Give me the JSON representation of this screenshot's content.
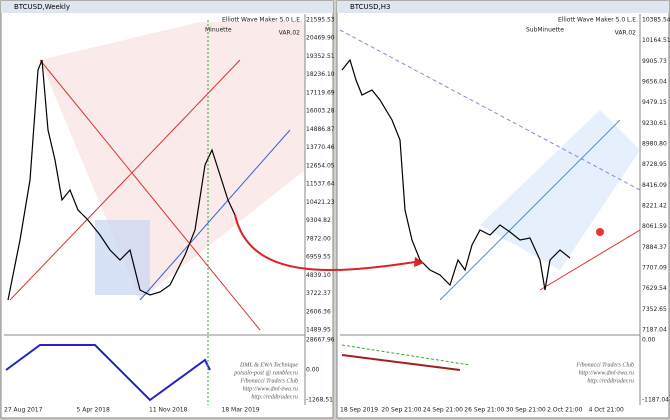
{
  "left": {
    "title": "BTCUSD,Weekly",
    "watermark": "Elliott Wave Maker 5.0 L.E.",
    "variant": "VAR.02",
    "degree": "Minuette",
    "price_axis": [
      "21595.53",
      "20469.90",
      "19352.51",
      "18236.10",
      "17119.69",
      "16003.28",
      "14886.87",
      "13770.46",
      "12654.05",
      "11537.64",
      "10421.23",
      "9304.82",
      "7872.00",
      "6959.55",
      "4839.10",
      "3722.37",
      "2606.36",
      "1489.95"
    ],
    "indicator_axis": [
      "28667.96",
      "0.00",
      "-1268.51"
    ],
    "date_axis": [
      "27 Aug 2017",
      "5 Apr 2018",
      "11 Nov 2018",
      "18 Mar 2019"
    ],
    "footer": [
      "DML & EWA Technique",
      "potsulo-post @ rambler.ru",
      "Fibonacci Traders Club",
      "http://www.dml-ewa.ru",
      "http://reddtrader.ru"
    ]
  },
  "right": {
    "title": "BTCUSD,H3",
    "watermark": "Elliott Wave Maker 5.0 L.E.",
    "variant": "VAR.02",
    "degree": "SubMinuette",
    "price_axis": [
      "10385.54",
      "10164.51",
      "9905.73",
      "9656.04",
      "9479.15",
      "9230.61",
      "8980.80",
      "8728.95",
      "8416.09",
      "8221.42",
      "8061.59",
      "7884.37",
      "7707.09",
      "7629.54",
      "7352.65",
      "7187.04"
    ],
    "indicator_axis": [
      "0.00",
      "-1187.04"
    ],
    "date_axis": [
      "18 Sep 2019",
      "20 Sep 21:00",
      "24 Sep 21:00",
      "26 Sep 21:00",
      "30 Sep 21:00",
      "2 Oct 21:00",
      "4 Oct 21:00"
    ],
    "footer": [
      "Fibonacci Traders Club",
      "http://www.dml-ewa.ru",
      "http://reddtrader.ru"
    ]
  }
}
